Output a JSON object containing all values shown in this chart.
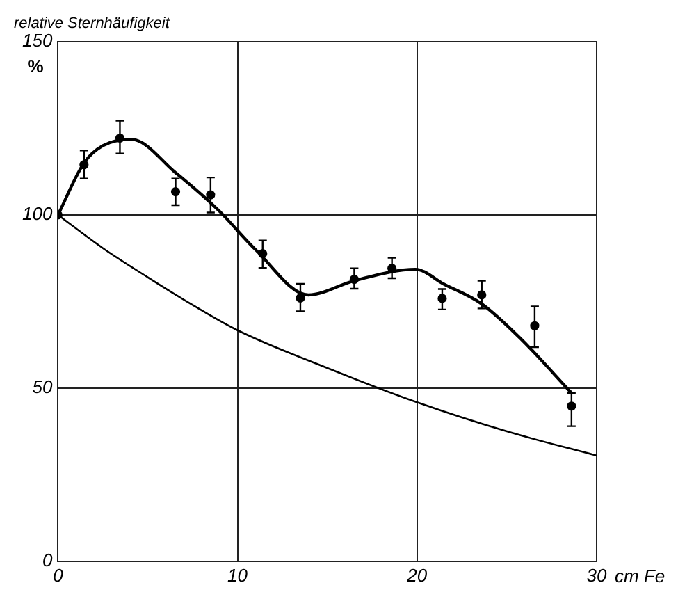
{
  "chart_data": {
    "type": "scatter",
    "ylabel": "relative Sternhäufigkeit\n%",
    "xlabel": "cm Fe",
    "xlim": [
      0,
      30
    ],
    "ylim": [
      0,
      150
    ],
    "xticks": [
      0,
      10,
      20,
      30
    ],
    "yticks": [
      0,
      50,
      100,
      150
    ],
    "grid": true,
    "legend": false,
    "marker": "circle",
    "series": [
      {
        "color": "#000000",
        "x": [
          0,
          1.45,
          3.45,
          6.55,
          8.5,
          11.4,
          13.5,
          16.5,
          18.6,
          21.4,
          23.6,
          26.55,
          28.6
        ],
        "values": [
          100,
          114.5,
          122.2,
          106.7,
          105.8,
          88.8,
          76,
          81.4,
          84.6,
          75.9,
          76.9,
          68,
          44.8
        ],
        "errors": [
          null,
          [
            110.5,
            118.6
          ],
          [
            117.7,
            127.2
          ],
          [
            102.8,
            110.5
          ],
          [
            100.7,
            110.8
          ],
          [
            84.7,
            92.6
          ],
          [
            72.2,
            80.1
          ],
          [
            78.7,
            84.6
          ],
          [
            81.7,
            87.6
          ],
          [
            72.7,
            78.6
          ],
          [
            73,
            81
          ],
          [
            61.8,
            73.6
          ],
          [
            39,
            48.6
          ]
        ]
      },
      {
        "type": "line",
        "color": "#000000",
        "marker": "none",
        "x": [
          0,
          1.45,
          2.5,
          4.1,
          6.55,
          8.95,
          11,
          13.95,
          16.5,
          19.9,
          21.5,
          23.6,
          25.8,
          28.6
        ],
        "values": [
          100,
          115,
          120,
          121.8,
          112.2,
          101.3,
          90,
          76.9,
          81,
          84.3,
          80,
          74.3,
          64.1,
          48.6
        ]
      },
      {
        "type": "line",
        "color": "#000000",
        "marker": "none",
        "x": [
          0,
          2.5,
          5,
          7.5,
          10,
          15,
          20,
          25,
          30
        ],
        "values": [
          100,
          90.4,
          82,
          74,
          66.7,
          55.8,
          45.9,
          37.5,
          30.5
        ]
      }
    ]
  }
}
